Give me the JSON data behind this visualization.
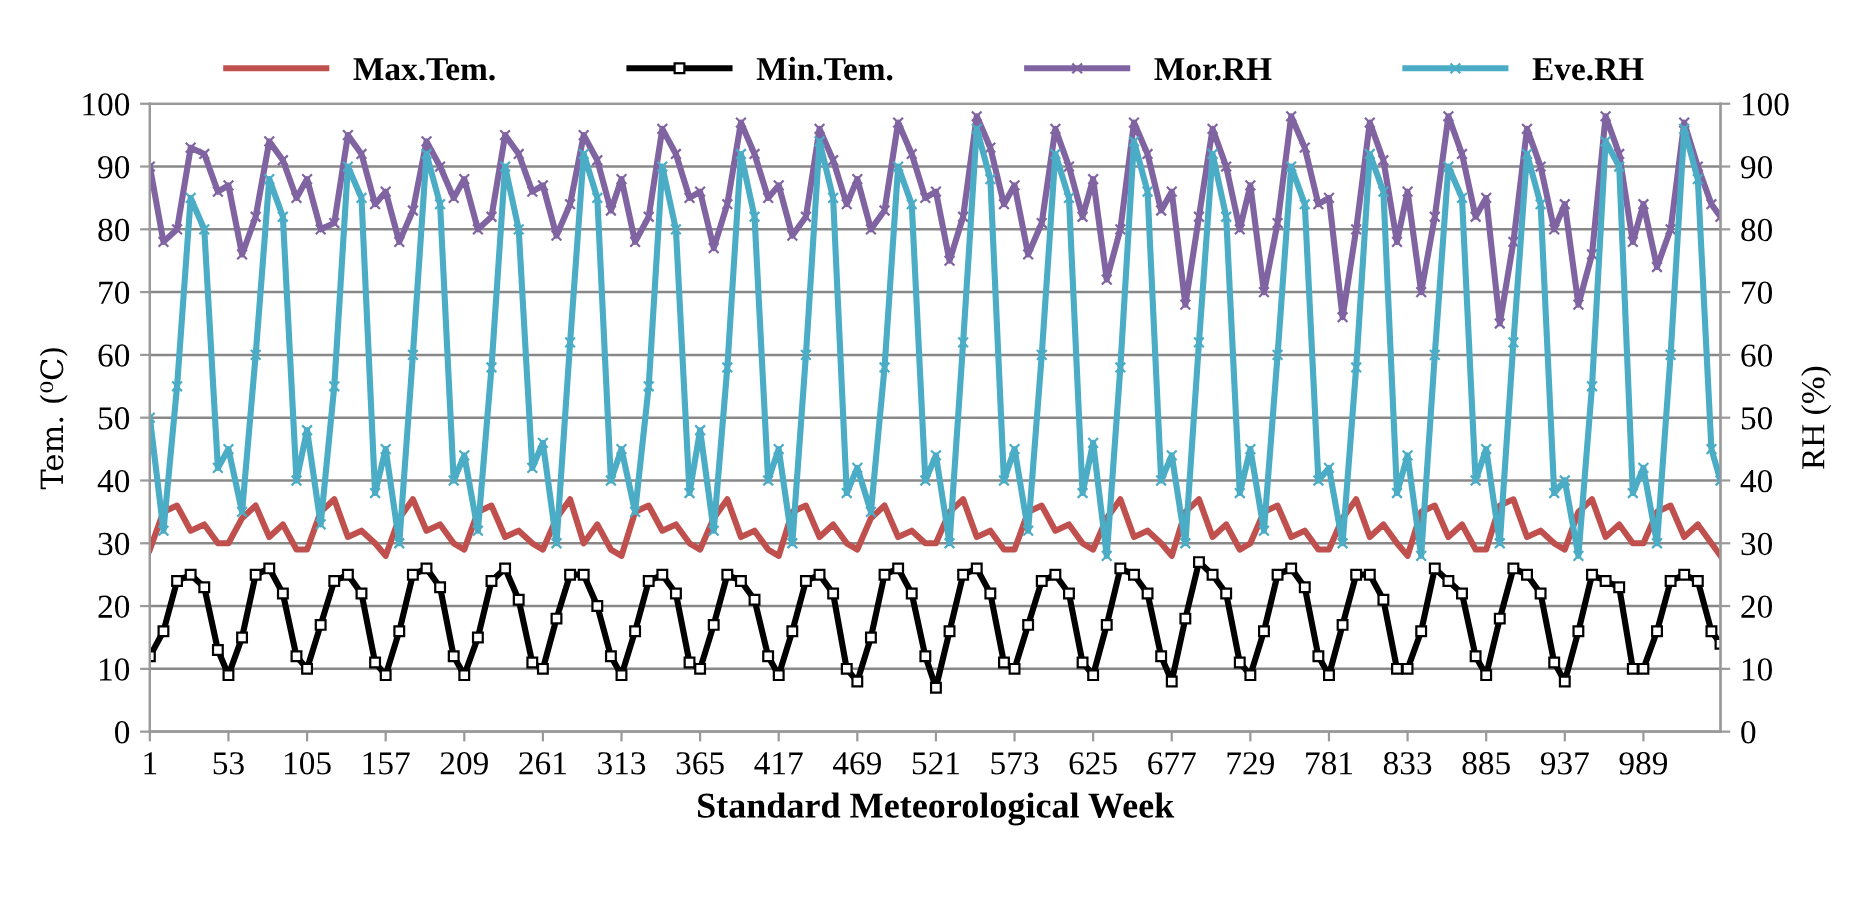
{
  "chart_data": {
    "type": "line",
    "xlabel": "Standard Meteorological Week",
    "ylabel": "Tem. (⁰C)",
    "y2label": "RH (%)",
    "x": [
      1,
      10,
      19,
      28,
      37,
      46,
      53,
      62,
      71,
      80,
      89,
      98,
      105,
      114,
      123,
      132,
      141,
      150,
      157,
      166,
      175,
      184,
      193,
      202,
      209,
      218,
      227,
      236,
      245,
      254,
      261,
      270,
      279,
      288,
      297,
      306,
      313,
      322,
      331,
      340,
      349,
      358,
      365,
      374,
      383,
      392,
      401,
      410,
      417,
      426,
      435,
      444,
      453,
      462,
      469,
      478,
      487,
      496,
      505,
      514,
      521,
      530,
      539,
      548,
      557,
      566,
      573,
      582,
      591,
      600,
      609,
      618,
      625,
      634,
      643,
      652,
      661,
      670,
      677,
      686,
      695,
      704,
      713,
      722,
      729,
      738,
      747,
      756,
      765,
      774,
      781,
      790,
      799,
      808,
      817,
      826,
      833,
      842,
      851,
      860,
      869,
      878,
      885,
      894,
      903,
      912,
      921,
      930,
      937,
      946,
      955,
      964,
      973,
      982,
      989,
      998,
      1007,
      1016,
      1025,
      1034,
      1040
    ],
    "xlim": [
      1,
      1040
    ],
    "xticks": [
      1,
      53,
      105,
      157,
      209,
      261,
      313,
      365,
      417,
      469,
      521,
      573,
      625,
      677,
      729,
      781,
      833,
      885,
      937,
      989
    ],
    "ylim": [
      0,
      100
    ],
    "yticks": [
      0,
      10,
      20,
      30,
      40,
      50,
      60,
      70,
      80,
      90,
      100
    ],
    "y2lim": [
      0,
      100
    ],
    "y2ticks": [
      0,
      10,
      20,
      30,
      40,
      50,
      60,
      70,
      80,
      90,
      100
    ],
    "grid": "y",
    "legend": "top",
    "series": [
      {
        "name": "Max.Tem.",
        "color": "#c0504d",
        "marker": "none",
        "values": [
          29,
          35,
          36,
          32,
          33,
          30,
          30,
          34,
          36,
          31,
          33,
          29,
          29,
          35,
          37,
          31,
          32,
          30,
          28,
          34,
          37,
          32,
          33,
          30,
          29,
          35,
          36,
          31,
          32,
          30,
          29,
          34,
          37,
          30,
          33,
          29,
          28,
          35,
          36,
          32,
          33,
          30,
          29,
          34,
          37,
          31,
          32,
          29,
          28,
          35,
          36,
          31,
          33,
          30,
          29,
          34,
          36,
          31,
          32,
          30,
          30,
          35,
          37,
          31,
          32,
          29,
          29,
          35,
          36,
          32,
          33,
          30,
          29,
          34,
          37,
          31,
          32,
          30,
          28,
          35,
          37,
          31,
          33,
          29,
          30,
          35,
          36,
          31,
          32,
          29,
          29,
          34,
          37,
          31,
          33,
          30,
          28,
          35,
          36,
          31,
          33,
          29,
          29,
          36,
          37,
          31,
          32,
          30,
          29,
          35,
          37,
          31,
          33,
          30,
          30,
          35,
          36,
          31,
          33,
          30,
          28
        ]
      },
      {
        "name": "Min.Tem.",
        "color": "#000000",
        "marker": "square",
        "values": [
          12,
          16,
          24,
          25,
          23,
          13,
          9,
          15,
          25,
          26,
          22,
          12,
          10,
          17,
          24,
          25,
          22,
          11,
          9,
          16,
          25,
          26,
          23,
          12,
          9,
          15,
          24,
          26,
          21,
          11,
          10,
          18,
          25,
          25,
          20,
          12,
          9,
          16,
          24,
          25,
          22,
          11,
          10,
          17,
          25,
          24,
          21,
          12,
          9,
          16,
          24,
          25,
          22,
          10,
          8,
          15,
          25,
          26,
          22,
          12,
          7,
          16,
          25,
          26,
          22,
          11,
          10,
          17,
          24,
          25,
          22,
          11,
          9,
          17,
          26,
          25,
          22,
          12,
          8,
          18,
          27,
          25,
          22,
          11,
          9,
          16,
          25,
          26,
          23,
          12,
          9,
          17,
          25,
          25,
          21,
          10,
          10,
          16,
          26,
          24,
          22,
          12,
          9,
          18,
          26,
          25,
          22,
          11,
          8,
          16,
          25,
          24,
          23,
          10,
          10,
          16,
          24,
          25,
          24,
          16,
          14
        ]
      },
      {
        "name": "Mor.RH",
        "color": "#8064a2",
        "marker": "cross",
        "axis": "y2",
        "values": [
          90,
          78,
          80,
          93,
          92,
          86,
          87,
          76,
          82,
          94,
          91,
          85,
          88,
          80,
          81,
          95,
          92,
          84,
          86,
          78,
          83,
          94,
          90,
          85,
          88,
          80,
          82,
          95,
          92,
          86,
          87,
          79,
          84,
          95,
          91,
          83,
          88,
          78,
          82,
          96,
          92,
          85,
          86,
          77,
          84,
          97,
          92,
          85,
          87,
          79,
          82,
          96,
          91,
          84,
          88,
          80,
          83,
          97,
          92,
          85,
          86,
          75,
          82,
          98,
          93,
          84,
          87,
          76,
          81,
          96,
          90,
          82,
          88,
          72,
          80,
          97,
          92,
          83,
          86,
          68,
          82,
          96,
          90,
          80,
          87,
          70,
          81,
          98,
          93,
          84,
          85,
          66,
          80,
          97,
          91,
          78,
          86,
          70,
          82,
          98,
          92,
          82,
          85,
          65,
          78,
          96,
          90,
          80,
          84,
          68,
          76,
          98,
          92,
          78,
          84,
          74,
          80,
          97,
          90,
          84,
          82
        ]
      },
      {
        "name": "Eve.RH",
        "color": "#4bacc6",
        "marker": "cross",
        "axis": "y2",
        "values": [
          50,
          32,
          55,
          85,
          80,
          42,
          45,
          35,
          60,
          88,
          82,
          40,
          48,
          33,
          55,
          90,
          85,
          38,
          45,
          30,
          60,
          92,
          84,
          40,
          44,
          32,
          58,
          90,
          80,
          42,
          46,
          30,
          62,
          92,
          85,
          40,
          45,
          35,
          55,
          90,
          80,
          38,
          48,
          32,
          58,
          92,
          82,
          40,
          45,
          30,
          60,
          94,
          85,
          38,
          42,
          35,
          58,
          90,
          84,
          40,
          44,
          30,
          62,
          96,
          88,
          40,
          45,
          32,
          60,
          92,
          85,
          38,
          46,
          28,
          58,
          94,
          86,
          40,
          44,
          30,
          62,
          92,
          82,
          38,
          45,
          32,
          60,
          90,
          84,
          40,
          42,
          30,
          58,
          92,
          86,
          38,
          44,
          28,
          60,
          90,
          85,
          40,
          45,
          30,
          62,
          92,
          84,
          38,
          40,
          28,
          55,
          94,
          90,
          38,
          42,
          30,
          60,
          96,
          88,
          45,
          40
        ]
      }
    ]
  }
}
